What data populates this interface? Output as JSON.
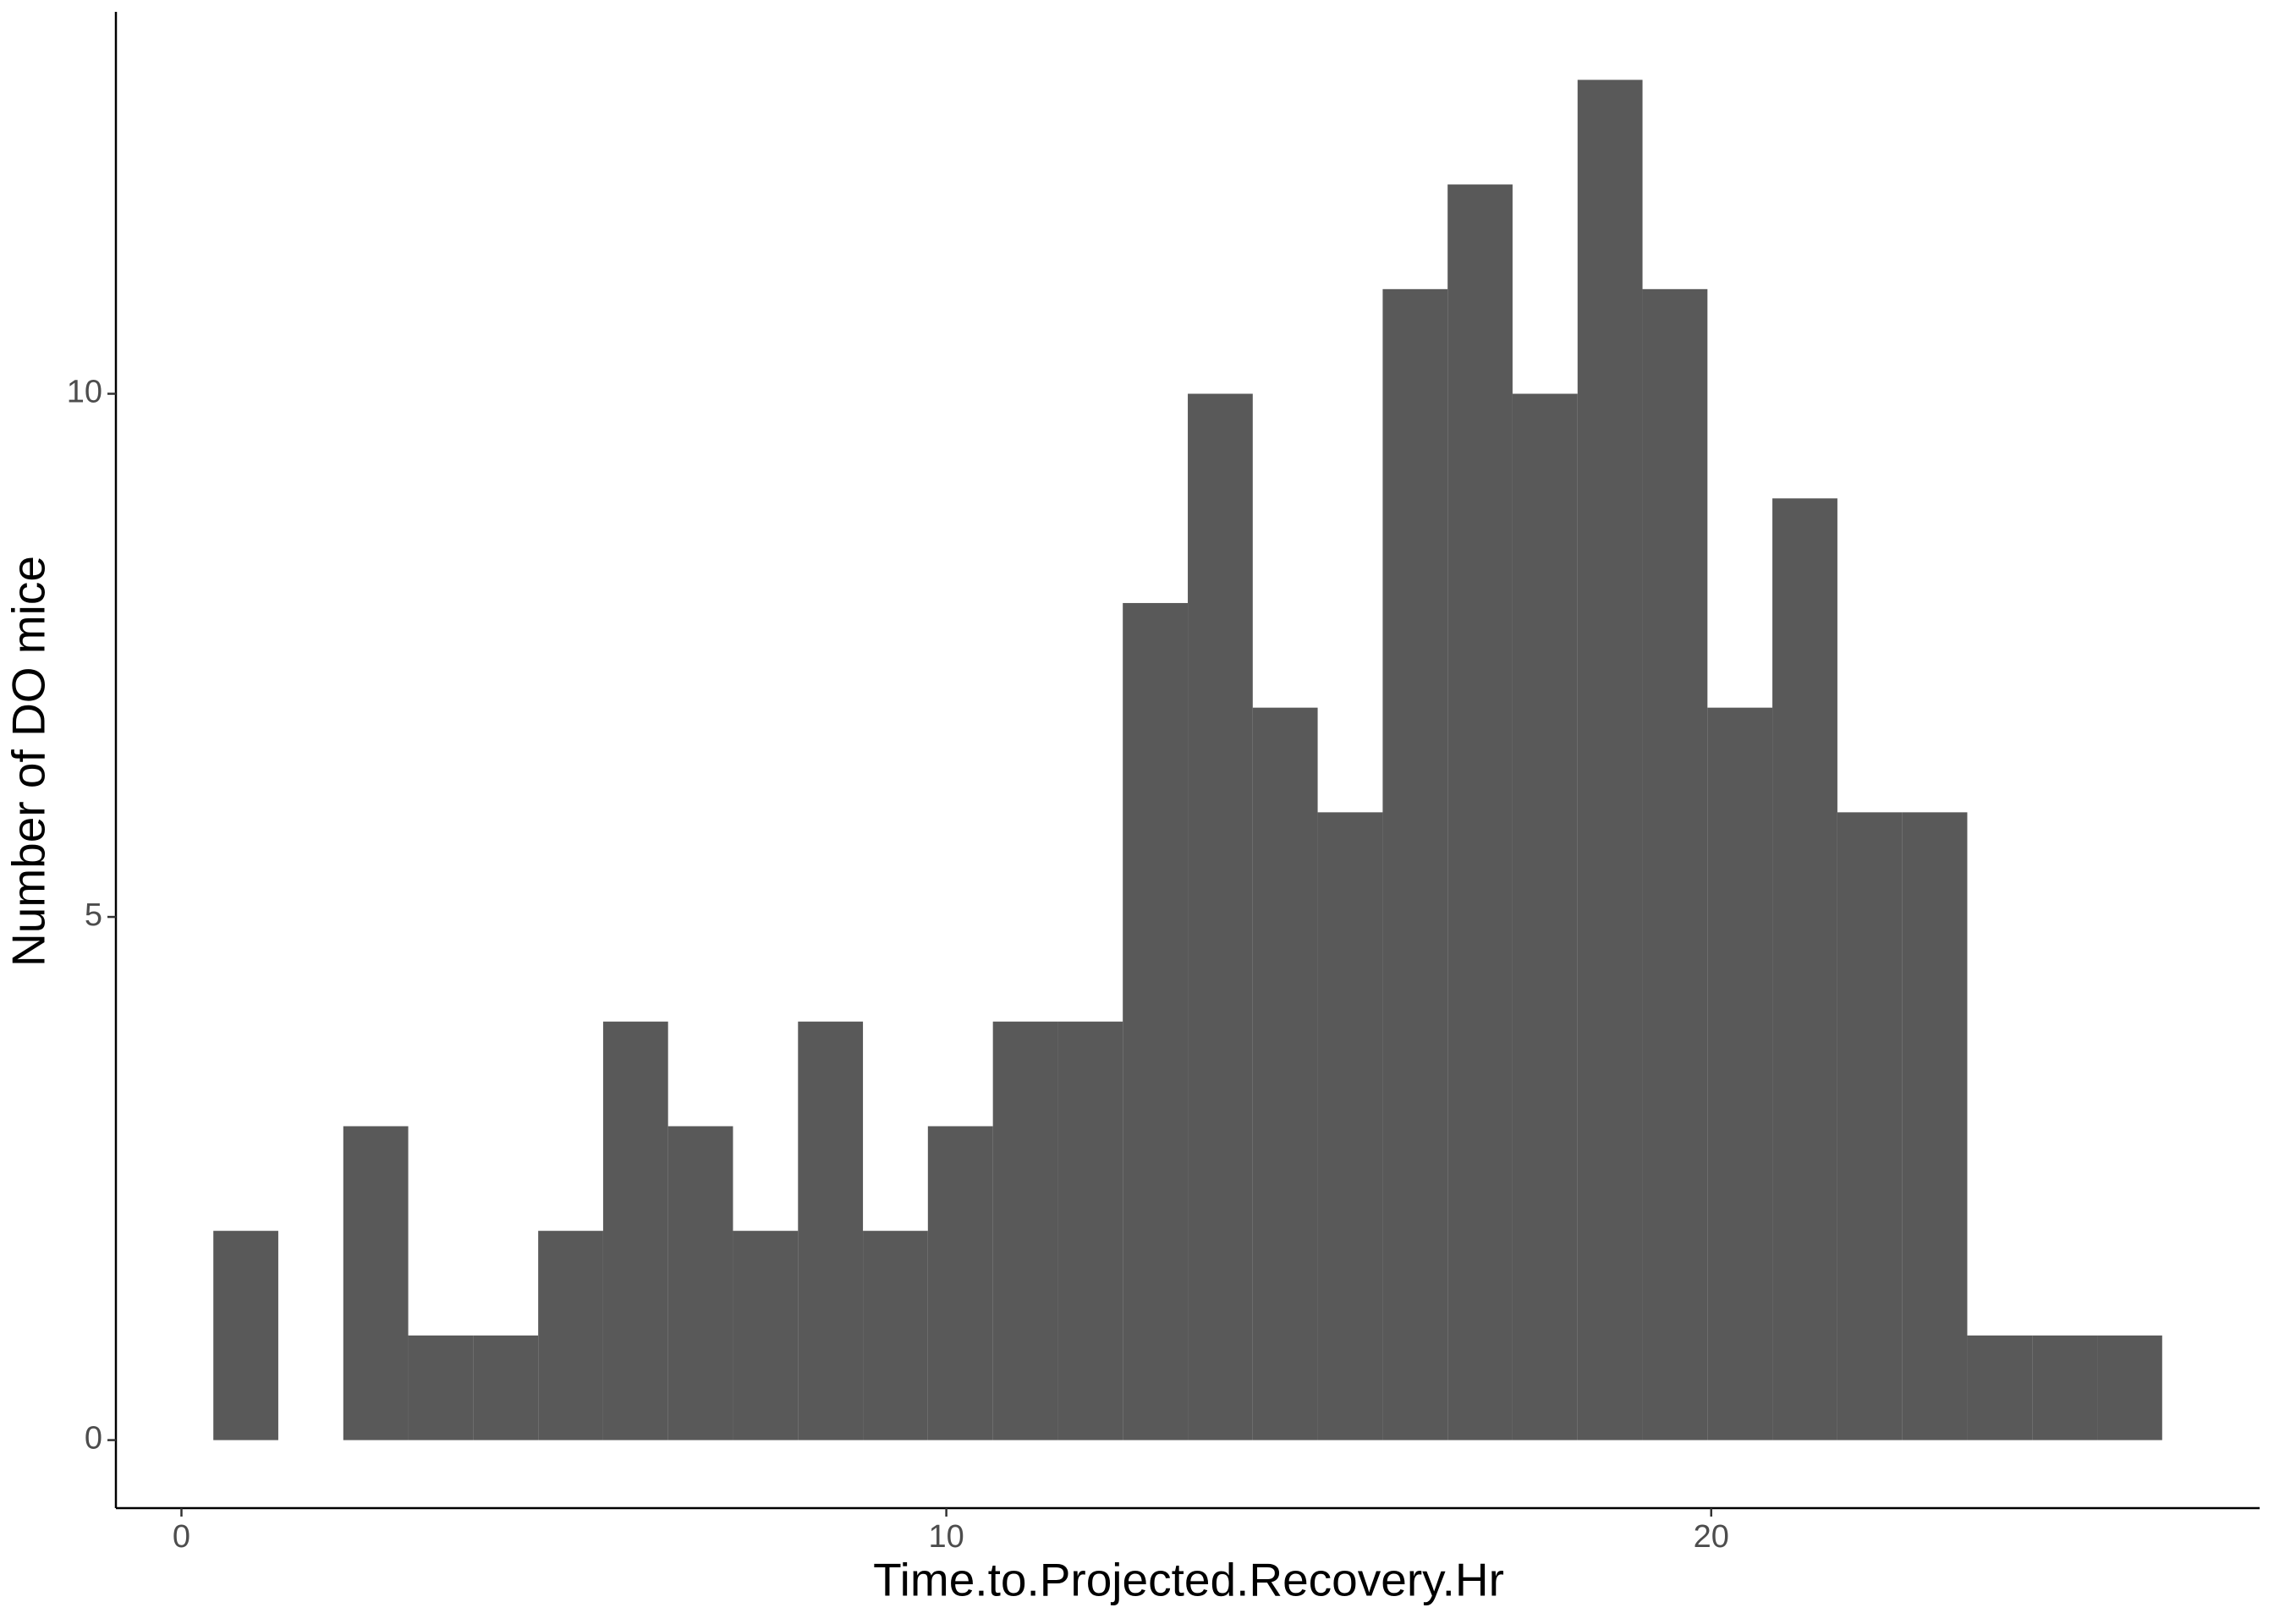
{
  "chart_data": {
    "type": "histogram",
    "xlabel": "Time.to.Projected.Recovery.Hr",
    "ylabel": "Number of DO mice",
    "bins": [
      0.417,
      1.266,
      2.116,
      2.965,
      3.814,
      4.664,
      5.513,
      6.362,
      7.211,
      8.061,
      8.91,
      9.759,
      10.609,
      11.458,
      12.307,
      13.157,
      14.006,
      14.855,
      15.705,
      16.554,
      17.403,
      18.253,
      19.102,
      19.951,
      20.8,
      21.65,
      22.499,
      23.348,
      24.198,
      25.047,
      25.896
    ],
    "counts": [
      2,
      0,
      3,
      1,
      1,
      2,
      4,
      3,
      2,
      4,
      2,
      3,
      4,
      4,
      8,
      10,
      7,
      6,
      11,
      12,
      10,
      13,
      11,
      7,
      9,
      6,
      6,
      1,
      1,
      1
    ],
    "color": "#595959",
    "xlim": [
      -0.857,
      27.17
    ],
    "xticks": [
      0,
      10,
      20
    ],
    "ylim": [
      -0.65,
      13.65
    ],
    "yticks": [
      0,
      5,
      10
    ],
    "grid": false
  }
}
